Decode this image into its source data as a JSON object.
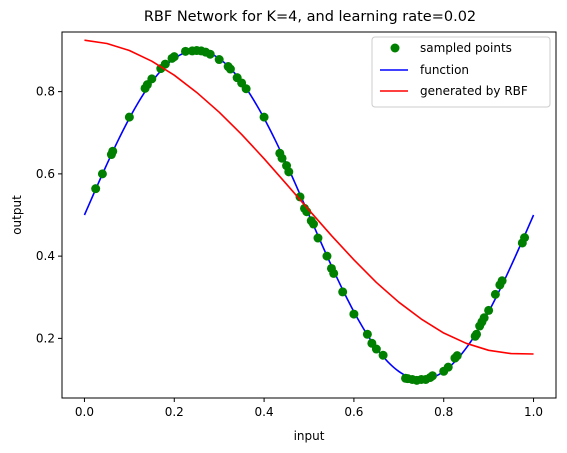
{
  "chart_data": {
    "type": "line",
    "title": "RBF Network for K=4, and learning rate=0.02",
    "xlabel": "input",
    "ylabel": "output",
    "xlim": [
      -0.05,
      1.05
    ],
    "ylim": [
      0.055,
      0.945
    ],
    "xticks": [
      0.0,
      0.2,
      0.4,
      0.6,
      0.8,
      1.0
    ],
    "xtick_labels": [
      "0.0",
      "0.2",
      "0.4",
      "0.6",
      "0.8",
      "1.0"
    ],
    "yticks": [
      0.2,
      0.4,
      0.6,
      0.8
    ],
    "ytick_labels": [
      "0.2",
      "0.4",
      "0.6",
      "0.8"
    ],
    "grid": false,
    "legend_position": "top-right",
    "series": [
      {
        "name": "sampled points",
        "kind": "scatter",
        "color": "#008000",
        "x": [
          0.025,
          0.04,
          0.06,
          0.063,
          0.1,
          0.135,
          0.14,
          0.15,
          0.17,
          0.18,
          0.195,
          0.2,
          0.225,
          0.24,
          0.25,
          0.26,
          0.27,
          0.28,
          0.3,
          0.32,
          0.325,
          0.34,
          0.35,
          0.36,
          0.4,
          0.435,
          0.44,
          0.45,
          0.455,
          0.48,
          0.49,
          0.495,
          0.505,
          0.51,
          0.52,
          0.54,
          0.55,
          0.555,
          0.575,
          0.6,
          0.63,
          0.64,
          0.65,
          0.665,
          0.715,
          0.72,
          0.73,
          0.74,
          0.75,
          0.76,
          0.77,
          0.775,
          0.8,
          0.81,
          0.825,
          0.83,
          0.87,
          0.873,
          0.88,
          0.885,
          0.89,
          0.9,
          0.915,
          0.925,
          0.93,
          0.975,
          0.98
        ],
        "y": [
          0.564,
          0.6,
          0.647,
          0.655,
          0.738,
          0.808,
          0.817,
          0.831,
          0.856,
          0.867,
          0.881,
          0.885,
          0.898,
          0.899,
          0.9,
          0.899,
          0.896,
          0.891,
          0.878,
          0.861,
          0.855,
          0.834,
          0.821,
          0.807,
          0.738,
          0.65,
          0.638,
          0.62,
          0.605,
          0.544,
          0.516,
          0.508,
          0.486,
          0.478,
          0.444,
          0.4,
          0.37,
          0.358,
          0.313,
          0.259,
          0.21,
          0.188,
          0.174,
          0.159,
          0.103,
          0.102,
          0.1,
          0.098,
          0.1,
          0.1,
          0.105,
          0.109,
          0.12,
          0.13,
          0.152,
          0.158,
          0.205,
          0.21,
          0.23,
          0.24,
          0.25,
          0.268,
          0.307,
          0.33,
          0.34,
          0.432,
          0.445
        ]
      },
      {
        "name": "function",
        "kind": "line",
        "color": "#0000ff",
        "formula": "0.5 + 0.4*sin(2*pi*x)"
      },
      {
        "name": "generated by RBF",
        "kind": "line",
        "color": "#ff0000",
        "x": [
          0.0,
          0.05,
          0.1,
          0.15,
          0.2,
          0.25,
          0.3,
          0.35,
          0.4,
          0.45,
          0.5,
          0.55,
          0.6,
          0.65,
          0.7,
          0.75,
          0.8,
          0.85,
          0.9,
          0.95,
          1.0
        ],
        "y": [
          0.925,
          0.917,
          0.9,
          0.874,
          0.84,
          0.798,
          0.75,
          0.696,
          0.637,
          0.575,
          0.512,
          0.45,
          0.391,
          0.336,
          0.288,
          0.247,
          0.213,
          0.188,
          0.171,
          0.163,
          0.162
        ]
      }
    ]
  }
}
